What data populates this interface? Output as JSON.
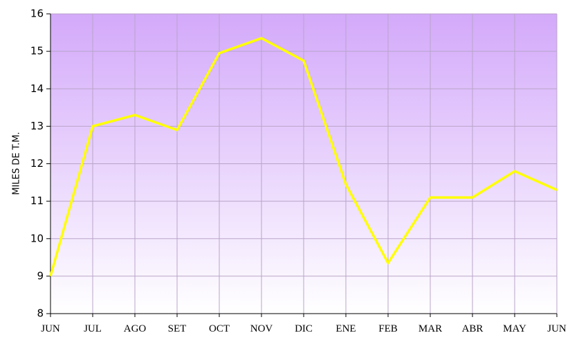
{
  "chart_data": {
    "type": "line",
    "y_label": "MILES DE T.M.",
    "categories": [
      "JUN",
      "JUL",
      "AGO",
      "SET",
      "OCT",
      "NOV",
      "DIC",
      "ENE",
      "FEB",
      "MAR",
      "ABR",
      "MAY",
      "JUN"
    ],
    "series": [
      {
        "name": "MILES DE T.M.",
        "color": "#ffff00",
        "values": [
          9.0,
          13.0,
          13.3,
          12.9,
          14.95,
          15.35,
          14.75,
          11.45,
          9.35,
          11.1,
          11.1,
          11.8,
          11.3
        ]
      }
    ],
    "ylim": [
      8,
      16
    ],
    "yticks": [
      8,
      9,
      10,
      11,
      12,
      13,
      14,
      15,
      16
    ],
    "grid": true
  }
}
